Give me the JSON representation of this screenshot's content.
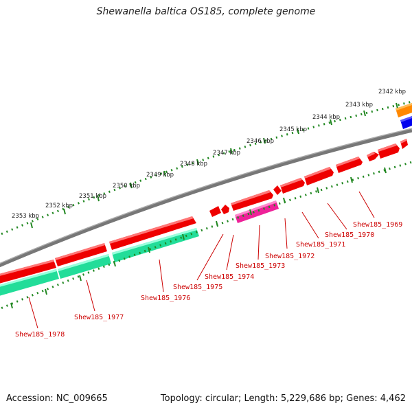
{
  "title": "Shewanella baltica OS185, complete genome",
  "footer": {
    "accession": "Accession: NC_009665",
    "topology": "Topology: circular; Length: 5,229,686 bp; Genes: 4,462"
  },
  "kbp_ticks": [
    "2342 kbp",
    "2343 kbp",
    "2344 kbp",
    "2345 kbp",
    "2346 kbp",
    "2347 kbp",
    "2348 kbp",
    "2349 kbp",
    "2350 kbp",
    "2351 kbp",
    "2352 kbp",
    "2353 kbp"
  ],
  "gene_labels": [
    "Shew185_1969",
    "Shew185_1970",
    "Shew185_1971",
    "Shew185_1972",
    "Shew185_1973",
    "Shew185_1974",
    "Shew185_1975",
    "Shew185_1976",
    "Shew185_1977",
    "Shew185_1978"
  ],
  "colors": {
    "backbone": "#777777",
    "cds_forward": "#ee0000",
    "cds_reverse": "#22dd99",
    "cds_special": "#ee2299",
    "orange_feature": "#ff8800",
    "blue_feature": "#0000ee",
    "tick_dots": "#228822",
    "label_text": "#cc0000"
  }
}
